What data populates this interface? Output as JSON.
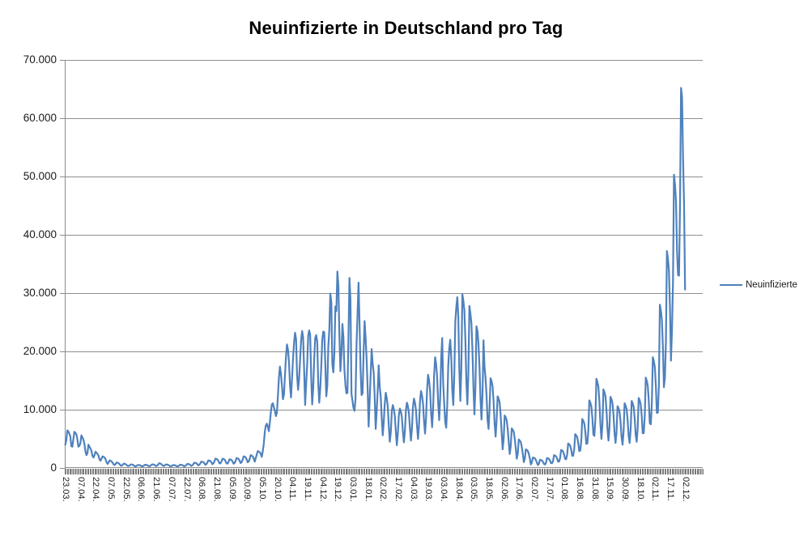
{
  "colors": {
    "line": "#4F81BD",
    "gridline": "#8f8f8f",
    "axis": "#8c8c8c",
    "background": "#ffffff",
    "text": "#1a1a1a"
  },
  "chart_data": {
    "type": "line",
    "title": "Neuinfizierte in Deutschland pro Tag",
    "xlabel": "",
    "ylabel": "",
    "ylim": [
      0,
      70000
    ],
    "y_tick_step": 10000,
    "y_tick_labels": [
      "0",
      "10.000",
      "20.000",
      "30.000",
      "40.000",
      "50.000",
      "60.000",
      "70.000"
    ],
    "x_tick_labels": [
      "23.03.",
      "07.04.",
      "22.04.",
      "07.05.",
      "22.05.",
      "06.06.",
      "21.06.",
      "07.07.",
      "22.07.",
      "06.08.",
      "21.08.",
      "05.09.",
      "20.09.",
      "05.10.",
      "20.10.",
      "04.11.",
      "19.11.",
      "04.12.",
      "19.12.",
      "03.01.",
      "18.01.",
      "02.02.",
      "17.02.",
      "04.03.",
      "19.03.",
      "03.04.",
      "18.04.",
      "03.05.",
      "18.05.",
      "02.06.",
      "17.06.",
      "02.07.",
      "17.07.",
      "01.08.",
      "16.08.",
      "31.08.",
      "15.09.",
      "30.09.",
      "18.10.",
      "02.11.",
      "17.11.",
      "02.12."
    ],
    "x_tick_every": 15,
    "total_categories": 633,
    "grid": true,
    "legend_position": "right",
    "series": [
      {
        "name": "Neuinfizierte",
        "color": "#4F81BD",
        "values": [
          4000,
          4750,
          6450,
          6300,
          5900,
          5450,
          3750,
          3650,
          4900,
          6200,
          6050,
          5750,
          4950,
          3650,
          3800,
          4250,
          5600,
          5250,
          4850,
          4150,
          2850,
          2200,
          2550,
          4000,
          3650,
          3350,
          2950,
          2050,
          1800,
          2200,
          2800,
          2600,
          2400,
          2100,
          1450,
          1250,
          1600,
          2000,
          1900,
          1800,
          1500,
          950,
          700,
          950,
          1300,
          1250,
          1100,
          900,
          600,
          500,
          700,
          950,
          900,
          800,
          650,
          400,
          400,
          550,
          750,
          700,
          650,
          500,
          350,
          350,
          450,
          600,
          600,
          550,
          450,
          300,
          300,
          400,
          500,
          500,
          480,
          400,
          270,
          300,
          420,
          550,
          540,
          500,
          420,
          280,
          320,
          450,
          600,
          620,
          580,
          480,
          320,
          400,
          550,
          800,
          780,
          700,
          560,
          380,
          350,
          480,
          620,
          580,
          540,
          440,
          300,
          280,
          390,
          500,
          490,
          460,
          380,
          260,
          300,
          420,
          560,
          540,
          510,
          420,
          280,
          350,
          500,
          700,
          680,
          640,
          520,
          350,
          450,
          630,
          900,
          870,
          820,
          670,
          450,
          550,
          780,
          1100,
          1060,
          1000,
          820,
          550,
          650,
          920,
          1300,
          1260,
          1190,
          970,
          650,
          800,
          1130,
          1600,
          1550,
          1460,
          1190,
          800,
          800,
          1130,
          1600,
          1540,
          1450,
          1180,
          790,
          750,
          1060,
          1500,
          1450,
          1360,
          1110,
          740,
          850,
          1200,
          1700,
          1640,
          1550,
          1260,
          840,
          1000,
          1410,
          2000,
          1930,
          1820,
          1480,
          990,
          1100,
          1550,
          2200,
          2120,
          2000,
          1630,
          1090,
          1700,
          2300,
          2900,
          2800,
          2700,
          2400,
          1900,
          2900,
          4200,
          6200,
          7300,
          7600,
          7100,
          6300,
          7800,
          9600,
          10900,
          11100,
          10400,
          9800,
          8900,
          9500,
          12400,
          15500,
          17400,
          16200,
          14100,
          11800,
          12600,
          15900,
          19100,
          21200,
          20300,
          18100,
          14200,
          12100,
          15400,
          18700,
          21500,
          23200,
          22100,
          16000,
          13400,
          15300,
          18500,
          21900,
          23500,
          22500,
          16900,
          10800,
          14400,
          17600,
          22600,
          23600,
          22900,
          15700,
          10900,
          13600,
          18600,
          22300,
          22800,
          21700,
          14600,
          11200,
          13600,
          17300,
          22000,
          23400,
          23300,
          17800,
          12300,
          14100,
          20800,
          23700,
          29900,
          28400,
          17800,
          16400,
          19600,
          27700,
          26900,
          33700,
          31300,
          22800,
          16600,
          19500,
          24700,
          22400,
          16800,
          14200,
          12800,
          12900,
          22500,
          32600,
          28800,
          12700,
          11500,
          10300,
          9800,
          11900,
          21200,
          26400,
          31800,
          24700,
          16900,
          12500,
          12800,
          19600,
          25200,
          22400,
          18700,
          13900,
          7100,
          11400,
          16000,
          20400,
          17900,
          16400,
          12300,
          6700,
          9700,
          13200,
          17600,
          14000,
          12300,
          8600,
          5600,
          7800,
          11000,
          12900,
          12000,
          10500,
          7300,
          4500,
          6100,
          9700,
          10800,
          10100,
          8900,
          6300,
          3900,
          5900,
          9000,
          10200,
          9700,
          8700,
          6200,
          4400,
          6300,
          9900,
          11200,
          10600,
          9400,
          6800,
          4700,
          6800,
          10500,
          11900,
          11200,
          9900,
          7200,
          5000,
          7300,
          11500,
          13200,
          12400,
          11000,
          8000,
          5900,
          8600,
          13500,
          16000,
          15000,
          13200,
          9500,
          7000,
          10200,
          16000,
          19000,
          17800,
          15600,
          11300,
          8200,
          12000,
          18800,
          22300,
          14500,
          11000,
          7900,
          6900,
          10800,
          17500,
          20500,
          22000,
          19000,
          13400,
          10800,
          15900,
          25000,
          27600,
          29300,
          25800,
          16800,
          11500,
          17100,
          29800,
          28700,
          27100,
          22100,
          14700,
          10900,
          16500,
          27800,
          26500,
          24800,
          20300,
          13800,
          9200,
          14000,
          24300,
          23500,
          21300,
          17400,
          11900,
          8300,
          12600,
          21900,
          17400,
          15400,
          12500,
          8300,
          6700,
          10200,
          15400,
          14900,
          14000,
          11400,
          7600,
          5400,
          8200,
          12300,
          11900,
          11200,
          9100,
          6100,
          3200,
          5000,
          9000,
          8700,
          8200,
          6700,
          4500,
          2400,
          3700,
          6800,
          6550,
          6200,
          5050,
          3350,
          1600,
          2500,
          4900,
          4700,
          4450,
          3600,
          2400,
          1000,
          1600,
          3200,
          3100,
          2900,
          2400,
          1600,
          600,
          950,
          1800,
          1750,
          1650,
          1350,
          900,
          500,
          750,
          1400,
          1360,
          1280,
          1050,
          700,
          600,
          900,
          1700,
          1650,
          1550,
          1250,
          850,
          800,
          1200,
          2200,
          2100,
          2000,
          1650,
          1100,
          1100,
          1700,
          3100,
          3000,
          2800,
          2300,
          1550,
          1500,
          2300,
          4200,
          4050,
          3850,
          3150,
          2100,
          2100,
          3200,
          5800,
          5600,
          5300,
          4300,
          2900,
          3000,
          4600,
          8400,
          8100,
          7650,
          6250,
          4150,
          4200,
          6400,
          11600,
          11200,
          10550,
          8600,
          5750,
          5500,
          8400,
          15300,
          14750,
          13900,
          11350,
          7550,
          5000,
          7500,
          13500,
          13000,
          12300,
          10000,
          6700,
          4700,
          7000,
          12200,
          11800,
          11100,
          9050,
          6050,
          4300,
          6200,
          10600,
          10250,
          9650,
          7900,
          5250,
          4000,
          6300,
          11100,
          10700,
          10100,
          8250,
          5500,
          4300,
          6600,
          11500,
          11100,
          10450,
          8550,
          5700,
          4500,
          6900,
          12000,
          11600,
          10900,
          8900,
          5950,
          6000,
          8900,
          15500,
          14950,
          14100,
          11500,
          7700,
          7500,
          10900,
          19000,
          18350,
          17300,
          14100,
          9450,
          9500,
          14100,
          28000,
          27000,
          25400,
          20750,
          13850,
          15500,
          21800,
          37200,
          35900,
          33800,
          27600,
          18400,
          23600,
          31800,
          50300,
          48600,
          45800,
          37400,
          33100,
          33000,
          45300,
          65200,
          63600,
          53100,
          45300,
          30600
        ]
      }
    ]
  },
  "legend": {
    "label": "Neuinfizierte"
  }
}
